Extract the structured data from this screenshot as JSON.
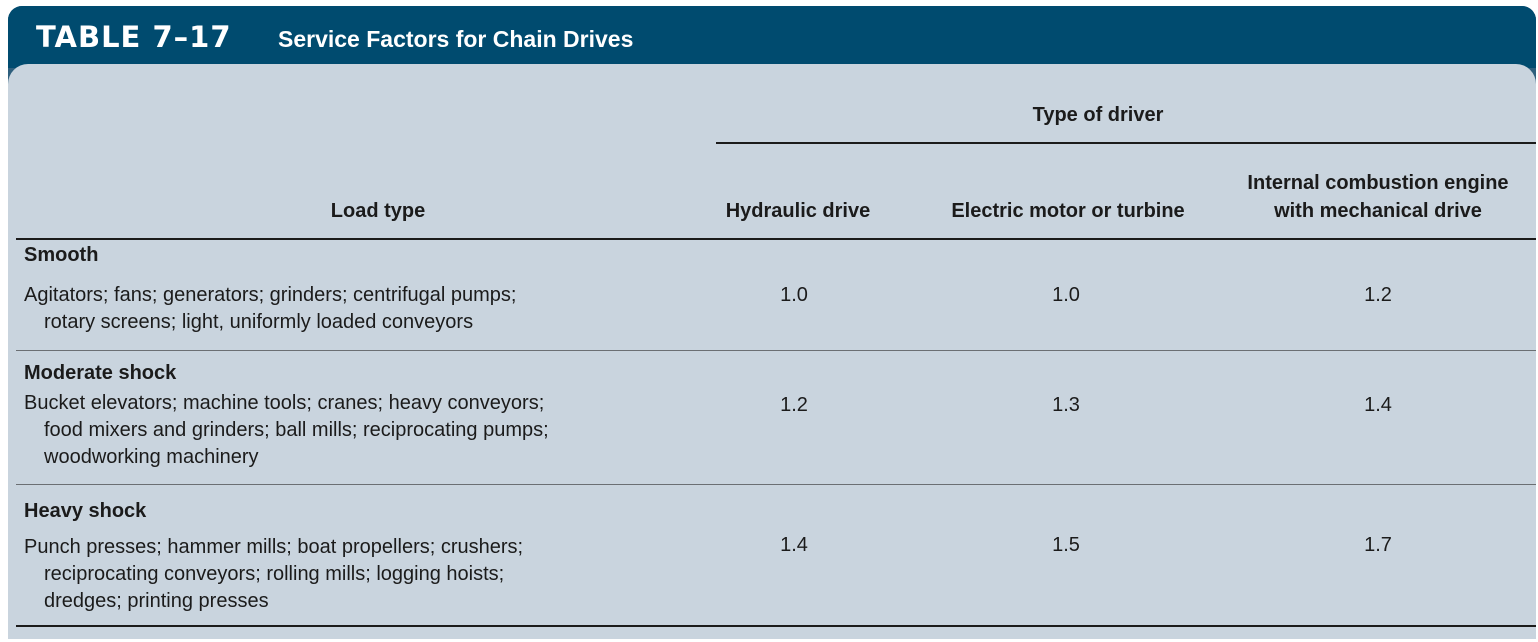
{
  "table": {
    "number": "TABLE 7–17",
    "title": "Service Factors for Chain Drives",
    "group_header": "Type of driver",
    "columns": {
      "load_type": "Load type",
      "hydraulic": "Hydraulic drive",
      "electric": "Electric motor or turbine",
      "ice_line1": "Internal combustion engine",
      "ice_line2": "with mechanical drive"
    },
    "rows": [
      {
        "category": "Smooth",
        "lines": [
          "Agitators; fans; generators; grinders; centrifugal pumps;",
          "rotary screens; light, uniformly loaded conveyors"
        ],
        "hydraulic": "1.0",
        "electric": "1.0",
        "ice": "1.2"
      },
      {
        "category": "Moderate shock",
        "lines": [
          "Bucket elevators; machine tools; cranes; heavy conveyors;",
          "food mixers and grinders; ball mills; reciprocating pumps;",
          "woodworking machinery"
        ],
        "hydraulic": "1.2",
        "electric": "1.3",
        "ice": "1.4"
      },
      {
        "category": "Heavy shock",
        "lines": [
          "Punch presses; hammer mills; boat propellers; crushers;",
          "reciprocating conveyors; rolling mills; logging hoists;",
          "dredges; printing presses"
        ],
        "hydraulic": "1.4",
        "electric": "1.5",
        "ice": "1.7"
      }
    ]
  }
}
